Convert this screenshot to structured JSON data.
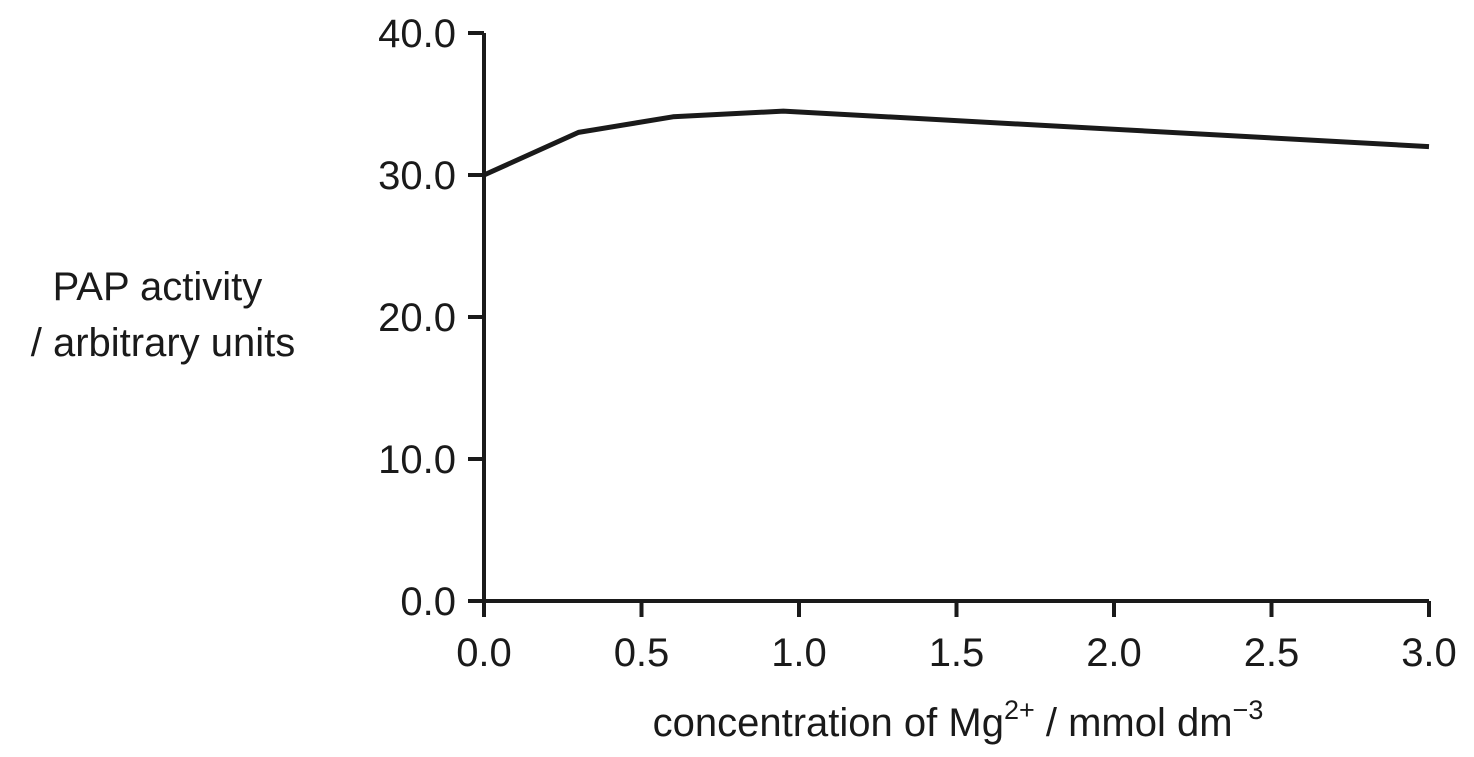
{
  "chart_data": {
    "type": "line",
    "title": "",
    "ylabel_lines": [
      "PAP activity",
      "/ arbitrary units"
    ],
    "xlabel": {
      "prefix": "concentration of Mg",
      "ion_charge": "2+",
      "unit_prefix": " / mmol dm",
      "unit_exponent": "−3"
    },
    "xlim": [
      0.0,
      3.0
    ],
    "ylim": [
      0.0,
      40.0
    ],
    "x_ticks": [
      {
        "value": 0.0,
        "label": "0.0"
      },
      {
        "value": 0.5,
        "label": "0.5"
      },
      {
        "value": 1.0,
        "label": "1.0"
      },
      {
        "value": 1.5,
        "label": "1.5"
      },
      {
        "value": 2.0,
        "label": "2.0"
      },
      {
        "value": 2.5,
        "label": "2.5"
      },
      {
        "value": 3.0,
        "label": "3.0"
      }
    ],
    "y_ticks": [
      {
        "value": 0.0,
        "label": "0.0"
      },
      {
        "value": 10.0,
        "label": "10.0"
      },
      {
        "value": 20.0,
        "label": "20.0"
      },
      {
        "value": 30.0,
        "label": "30.0"
      },
      {
        "value": 40.0,
        "label": "40.0"
      }
    ],
    "grid": false,
    "legend": "none",
    "series": [
      {
        "color": "#1a1a1a",
        "x": [
          0.0,
          0.3,
          0.6,
          0.95,
          3.0
        ],
        "y": [
          30.0,
          33.0,
          34.1,
          34.5,
          32.0
        ]
      }
    ]
  }
}
